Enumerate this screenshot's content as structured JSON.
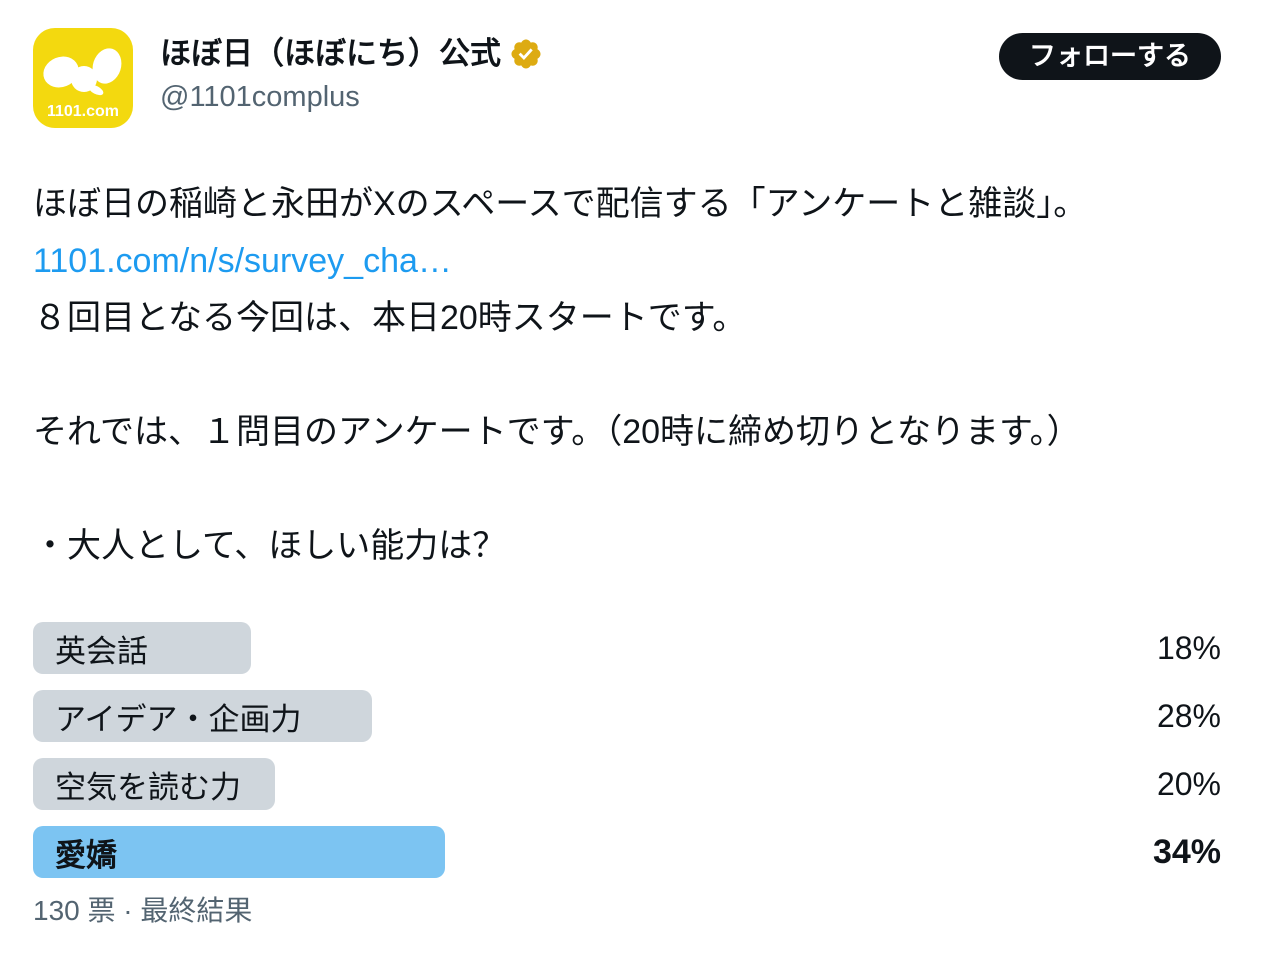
{
  "account": {
    "display_name": "ほぼ日（ほぼにち）公式",
    "handle": "@1101complus",
    "avatar_text": "1101.com",
    "verified_badge": "gold-verified-icon"
  },
  "follow_button": {
    "label": "フォローする"
  },
  "tweet": {
    "paragraph1_line1": "ほぼ日の稲崎と永田がXのスペースで配信する「アンケートと雑談」。",
    "link_text": "1101.com/n/s/survey_cha…",
    "paragraph1_line3": "８回目となる今回は、本日20時スタートです。",
    "paragraph2": "それでは、１問目のアンケートです。（20時に締め切りとなります。）",
    "paragraph3": "・大人として、ほしい能力は？"
  },
  "poll": {
    "options": [
      {
        "label": "英会話",
        "percent": 18,
        "percent_label": "18%",
        "winner": false
      },
      {
        "label": "アイデア・企画力",
        "percent": 28,
        "percent_label": "28%",
        "winner": false
      },
      {
        "label": "空気を読む力",
        "percent": 20,
        "percent_label": "20%",
        "winner": false
      },
      {
        "label": "愛嬌",
        "percent": 34,
        "percent_label": "34%",
        "winner": true
      }
    ],
    "footer": "130 票 · 最終結果"
  },
  "colors": {
    "link": "#1d9bf0",
    "winner_bar": "#7cc4f2",
    "default_bar": "#cfd6dc",
    "follow_button_bg": "#0f1419",
    "avatar_bg": "#f3d90f",
    "badge_gold": "#ddab12",
    "text_primary": "#0f1419",
    "text_secondary": "#536471"
  }
}
